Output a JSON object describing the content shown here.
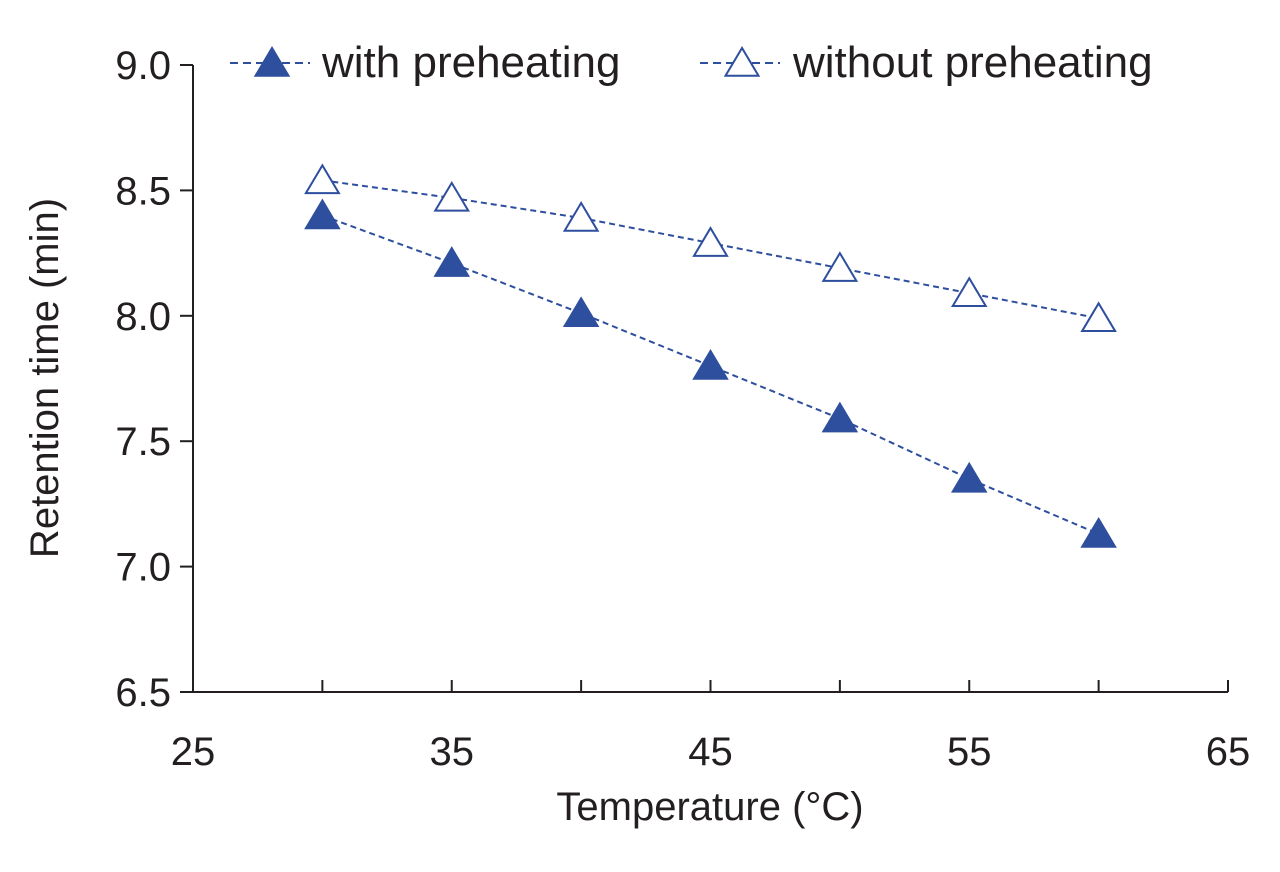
{
  "chart_data": {
    "type": "line",
    "title": "",
    "xlabel": "Temperature (°C)",
    "ylabel": "Retention time (min)",
    "xlim": [
      25,
      65
    ],
    "ylim": [
      6.5,
      9.0
    ],
    "x_tick_labels": [
      "25",
      "35",
      "45",
      "55",
      "65"
    ],
    "y_tick_labels": [
      "6.5",
      "7.0",
      "7.5",
      "8.0",
      "8.5",
      "9.0"
    ],
    "grid": false,
    "legend_position": "top",
    "x": [
      30,
      35,
      40,
      45,
      50,
      55,
      60
    ],
    "series": [
      {
        "name": "with preheating",
        "marker": "filled-triangle",
        "line": "dashed",
        "color": "#2e4e9e",
        "values": [
          8.4,
          8.21,
          8.01,
          7.8,
          7.59,
          7.35,
          7.13
        ]
      },
      {
        "name": "without preheating",
        "marker": "open-triangle",
        "line": "dashed",
        "color": "#2e4e9e",
        "values": [
          8.54,
          8.47,
          8.39,
          8.29,
          8.19,
          8.09,
          7.99
        ]
      }
    ]
  }
}
